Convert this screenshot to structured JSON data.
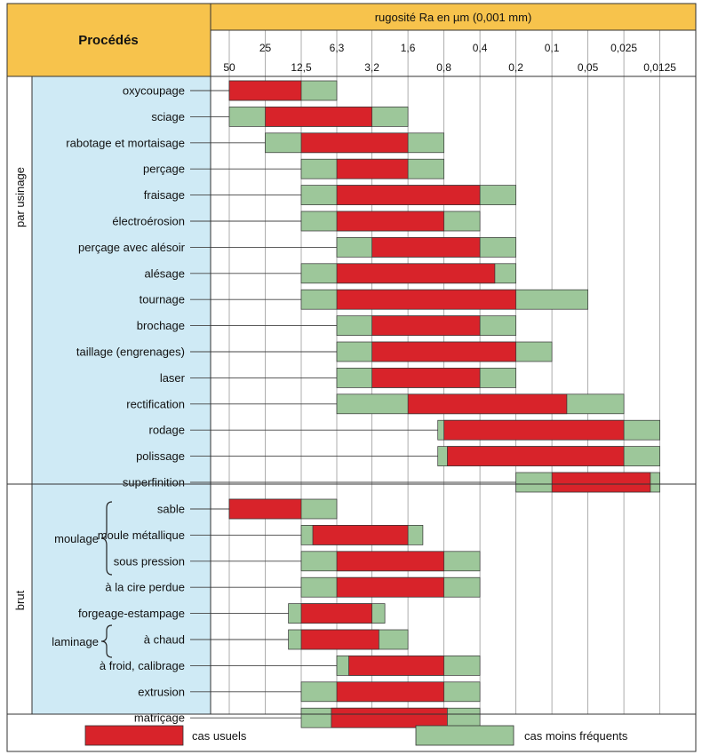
{
  "header": {
    "procedes_label": "Procédés",
    "scale_title": "rugosité Ra en µm (0,001 mm)"
  },
  "groups": {
    "usinage": "par usinage",
    "brut": "brut",
    "moulage": "moulage",
    "laminage": "laminage"
  },
  "legend": {
    "usual": "cas usuels",
    "less": "cas moins fréquents",
    "usual_color": "#d8232a",
    "less_color": "#9dc79a"
  },
  "chart_data": {
    "type": "bar",
    "orientation": "horizontal-range",
    "x_scale": "log-reversed",
    "x_unit": "µm",
    "xlim": [
      50,
      0.0125
    ],
    "x_ticks_top": [
      "25",
      "6,3",
      "1,6",
      "0,4",
      "0,1",
      "0,025"
    ],
    "x_ticks_bottom": [
      "50",
      "12,5",
      "3,2",
      "0,8",
      "0,2",
      "0,05",
      "0,0125"
    ],
    "series": [
      {
        "name": "cas usuels",
        "color": "#d8232a"
      },
      {
        "name": "cas moins fréquents",
        "color": "#9dc79a"
      }
    ],
    "rows": [
      {
        "label": "oxycoupage",
        "group": "par usinage",
        "rare": [
          50,
          6.3
        ],
        "usual": [
          50,
          12.5
        ]
      },
      {
        "label": "sciage",
        "group": "par usinage",
        "rare": [
          50,
          1.6
        ],
        "usual": [
          25,
          3.2
        ]
      },
      {
        "label": "rabotage et mortaisage",
        "group": "par usinage",
        "rare": [
          25,
          0.8
        ],
        "usual": [
          12.5,
          1.6
        ]
      },
      {
        "label": "perçage",
        "group": "par usinage",
        "rare": [
          12.5,
          0.8
        ],
        "usual": [
          6.3,
          1.6
        ]
      },
      {
        "label": "fraisage",
        "group": "par usinage",
        "rare": [
          12.5,
          0.2
        ],
        "usual": [
          6.3,
          0.4
        ]
      },
      {
        "label": "électroérosion",
        "group": "par usinage",
        "rare": [
          12.5,
          0.4
        ],
        "usual": [
          6.3,
          0.8
        ]
      },
      {
        "label": "perçage avec alésoir",
        "group": "par usinage",
        "rare": [
          6.3,
          0.2
        ],
        "usual": [
          3.2,
          0.4
        ]
      },
      {
        "label": "alésage",
        "group": "par usinage",
        "rare": [
          12.5,
          0.2
        ],
        "usual": [
          6.3,
          0.3
        ]
      },
      {
        "label": "tournage",
        "group": "par usinage",
        "rare": [
          12.5,
          0.05
        ],
        "usual": [
          6.3,
          0.2
        ]
      },
      {
        "label": "brochage",
        "group": "par usinage",
        "rare": [
          6.3,
          0.2
        ],
        "usual": [
          3.2,
          0.4
        ]
      },
      {
        "label": "taillage (engrenages)",
        "group": "par usinage",
        "rare": [
          6.3,
          0.1
        ],
        "usual": [
          3.2,
          0.2
        ]
      },
      {
        "label": "laser",
        "group": "par usinage",
        "rare": [
          6.3,
          0.2
        ],
        "usual": [
          3.2,
          0.4
        ]
      },
      {
        "label": "rectification",
        "group": "par usinage",
        "rare": [
          6.3,
          0.025
        ],
        "usual": [
          1.6,
          0.075
        ]
      },
      {
        "label": "rodage",
        "group": "par usinage",
        "rare": [
          0.9,
          0.0125
        ],
        "usual": [
          0.8,
          0.025
        ]
      },
      {
        "label": "polissage",
        "group": "par usinage",
        "rare": [
          0.9,
          0.0125
        ],
        "usual": [
          0.75,
          0.025
        ]
      },
      {
        "label": "superfinition",
        "group": "par usinage",
        "rare": [
          0.2,
          0.0125
        ],
        "usual": [
          0.1,
          0.015
        ]
      },
      {
        "label": "sable",
        "group": "brut",
        "subgroup": "moulage",
        "rare": [
          50,
          6.3
        ],
        "usual": [
          50,
          12.5
        ]
      },
      {
        "label": "moule métallique",
        "group": "brut",
        "subgroup": "moulage",
        "rare": [
          12.5,
          1.2
        ],
        "usual": [
          10,
          1.6
        ]
      },
      {
        "label": "sous pression",
        "group": "brut",
        "subgroup": "moulage",
        "rare": [
          12.5,
          0.4
        ],
        "usual": [
          6.3,
          0.8
        ]
      },
      {
        "label": "à la cire perdue",
        "group": "brut",
        "subgroup": "moulage",
        "rare": [
          12.5,
          0.4
        ],
        "usual": [
          6.3,
          0.8
        ]
      },
      {
        "label": "forgeage-estampage",
        "group": "brut",
        "rare": [
          16,
          2.5
        ],
        "usual": [
          12.5,
          3.2
        ]
      },
      {
        "label": "à chaud",
        "group": "brut",
        "subgroup": "laminage",
        "rare": [
          16,
          1.6
        ],
        "usual": [
          12.5,
          2.8
        ]
      },
      {
        "label": "à froid, calibrage",
        "group": "brut",
        "subgroup": "laminage",
        "rare": [
          6.3,
          0.4
        ],
        "usual": [
          5,
          0.8
        ]
      },
      {
        "label": "extrusion",
        "group": "brut",
        "rare": [
          12.5,
          0.4
        ],
        "usual": [
          6.3,
          0.8
        ]
      },
      {
        "label": "matriçage",
        "group": "brut",
        "rare": [
          12.5,
          0.4
        ],
        "usual": [
          7,
          0.75
        ]
      }
    ]
  }
}
